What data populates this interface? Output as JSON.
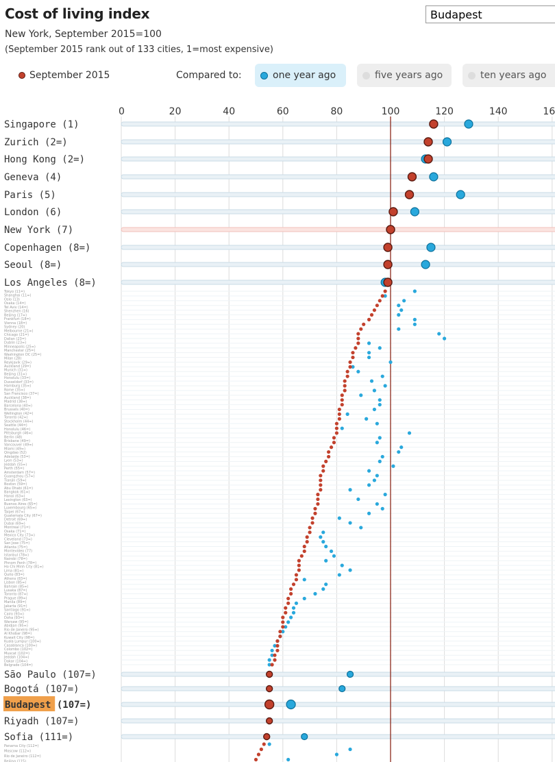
{
  "header": {
    "title": "Cost of living index",
    "subtitle": "New York, September 2015=100",
    "note": "(September 2015 rank out of 133 cities, 1=most expensive)"
  },
  "search": {
    "value": "Budapest"
  },
  "legend": {
    "current_label": "September 2015",
    "compared_to": "Compared to:",
    "options": [
      "one year ago",
      "five years ago",
      "ten years ago"
    ],
    "active_option": "one year ago"
  },
  "colors": {
    "current": "#c2412d",
    "one_year_ago": "#29a8dc",
    "reference_line": "#8b2a1c",
    "highlight": "#f0a04b",
    "row_line": "#c9dbe6",
    "ny_line": "#f2c1bb"
  },
  "chart_data": {
    "type": "scatter",
    "x_axis": {
      "min": 0,
      "max": 160,
      "ticks": [
        0,
        20,
        40,
        60,
        80,
        100,
        120,
        140,
        160
      ],
      "reference": 100
    },
    "series": [
      {
        "name": "September 2015"
      },
      {
        "name": "one year ago"
      }
    ],
    "labeled_cities": [
      {
        "label": "Singapore (1)",
        "current": 116,
        "year_ago": 129
      },
      {
        "label": "Zurich (2=)",
        "current": 114,
        "year_ago": 121
      },
      {
        "label": "Hong Kong (2=)",
        "current": 114,
        "year_ago": 113
      },
      {
        "label": "Geneva (4)",
        "current": 108,
        "year_ago": 116
      },
      {
        "label": "Paris (5)",
        "current": 107,
        "year_ago": 126
      },
      {
        "label": "London (6)",
        "current": 101,
        "year_ago": 109
      },
      {
        "label": "New York (7)",
        "current": 100,
        "year_ago": 100
      },
      {
        "label": "Copenhagen (8=)",
        "current": 99,
        "year_ago": 115
      },
      {
        "label": "Seoul (8=)",
        "current": 99,
        "year_ago": 113
      },
      {
        "label": "Los Angeles (8=)",
        "current": 99,
        "year_ago": 98
      },
      {
        "label": "São Paulo (107=)",
        "current": 55,
        "year_ago": 85
      },
      {
        "label": "Bogotá (107=)",
        "current": 55,
        "year_ago": 82
      },
      {
        "label": "Budapest (107=)",
        "current": 55,
        "year_ago": 63,
        "highlight": true
      },
      {
        "label": "Riyadh (107=)",
        "current": 55,
        "year_ago": 55
      },
      {
        "label": "Sofia (111=)",
        "current": 54,
        "year_ago": 68
      }
    ],
    "other_cities_current": [
      98,
      97,
      96,
      95,
      94,
      93,
      92,
      90,
      89,
      88,
      88,
      88,
      87,
      86,
      86,
      85,
      85,
      84,
      84,
      83,
      83,
      83,
      82,
      82,
      82,
      81,
      81,
      81,
      80,
      80,
      80,
      79,
      79,
      78,
      77,
      77,
      76,
      75,
      75,
      74,
      74,
      74,
      74,
      73,
      73,
      73,
      72,
      72,
      71,
      71,
      70,
      70,
      69,
      69,
      68,
      68,
      67,
      66,
      66,
      66,
      65,
      65,
      64,
      63,
      63,
      62,
      62,
      61,
      61,
      60,
      60,
      60,
      59,
      59,
      58,
      58,
      58,
      57,
      57,
      56
    ],
    "other_cities_year_ago": [
      109,
      98,
      105,
      103,
      104,
      103,
      109,
      109,
      103,
      118,
      120,
      92,
      96,
      92,
      92,
      100,
      86,
      88,
      97,
      93,
      98,
      94,
      89,
      96,
      96,
      94,
      84,
      91,
      95,
      82,
      107,
      96,
      95,
      104,
      103,
      97,
      96,
      101,
      92,
      95,
      94,
      92,
      85,
      98,
      88,
      95,
      97,
      92,
      81,
      85,
      89,
      75,
      74,
      75,
      76,
      78,
      79,
      76,
      82,
      85,
      81,
      68,
      76,
      75,
      72,
      68,
      65,
      64,
      64,
      63,
      62,
      61,
      60,
      59,
      58,
      57,
      56,
      56,
      55,
      55
    ],
    "lower_cities_current": [
      53,
      52,
      51,
      50,
      49
    ],
    "lower_cities_year_ago": [
      55,
      85,
      80,
      62,
      62
    ],
    "small_labels_top": [
      "Tokyo (11=)",
      "Shanghai (11=)",
      "Oslo (13)",
      "Osaka (14=)",
      "Tel Aviv (14=)",
      "Shenzhen (16)",
      "Beijing (17=)",
      "Frankfurt (18=)",
      "Vienna (18=)",
      "Sydney (20)",
      "Melbourne (21=)",
      "Chicago (21=)",
      "Dalian (23=)",
      "Dublin (23=)",
      "Minneapolis (25=)",
      "Manchester (25=)",
      "Washington DC (25=)",
      "Milan (28)",
      "Reykjavik (29=)",
      "Auckland (29=)",
      "Munich (31=)",
      "Beijing (31=)",
      "Honolulu (33=)",
      "Dusseldorf (33=)",
      "Hamburg (35=)",
      "Rome (35=)",
      "San Francisco (37=)",
      "Auckland (38=)",
      "Madrid (38=)",
      "Barcelona (40=)",
      "Brussels (40=)",
      "Wellington (42=)",
      "Toronto (42=)",
      "Stockholm (44=)",
      "Seattle (44=)",
      "Honolulu (46=)",
      "Pittsburgh (46=)",
      "Berlin (48)",
      "Brisbane (49=)",
      "Vancouver (49=)",
      "Miami (49=)",
      "Qingdao (52)",
      "Adelaide (53=)",
      "Lyon (53=)",
      "Jeddah (55=)",
      "Perth (55=)",
      "Amsterdam (57=)",
      "Guangzhou (57=)",
      "Tianjin (59=)",
      "Boston (59=)",
      "Abu Dhabi (61=)",
      "Bangkok (61=)",
      "Hanoi (63=)",
      "Lexington (63=)",
      "Buenos Aires (65=)",
      "Luxembourg (65=)",
      "Taipei (67=)",
      "Guatemala City (67=)",
      "Detroit (69=)",
      "Dubai (69=)",
      "Montreal (71=)",
      "Osaka (71=)",
      "Mexico City (73=)",
      "Cleveland (73=)",
      "San Jose (75=)",
      "Atlanta (75=)",
      "Montevideo (77)",
      "Istanbul (78=)",
      "Nairobi (78=)",
      "Phnom Penh (78=)",
      "Ho Chi Minh City (81=)",
      "Lima (81=)",
      "Quito (83=)",
      "Athens (83=)",
      "Lisbon (85=)",
      "Bahrain (85=)",
      "Lusaka (87=)",
      "Toronto (87=)",
      "Prague (89=)",
      "Manila (89=)",
      "Jakarta (91=)",
      "Santiago (91=)",
      "Cairo (93=)",
      "Doha (93=)",
      "Warsaw (95=)",
      "Abidjan (95=)",
      "Rio de Janeiro (95=)",
      "Al Khobar (98=)",
      "Kuwait City (98=)",
      "Kuala Lumpur (100=)",
      "Casablanca (100=)",
      "Colombo (102=)",
      "Muscat (102=)",
      "Jeddah (104=)",
      "Dakar (104=)",
      "Belgrade (104=)"
    ],
    "small_labels_bottom": [
      "Panama City (112=)",
      "Moscow (112=)",
      "Rio de Janeiro (112=)",
      "Beijing (115)"
    ]
  }
}
